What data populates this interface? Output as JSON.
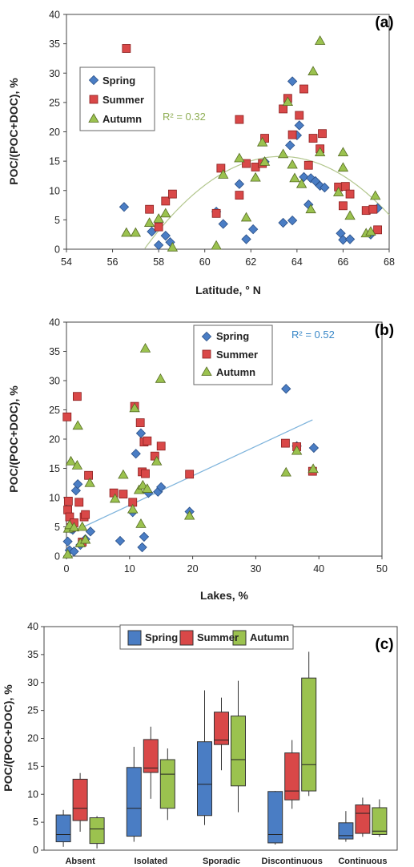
{
  "colors": {
    "spring": "#4a7dc4",
    "summer": "#d94848",
    "autumn": "#9bc24f",
    "fit_a": "#b3c78e",
    "fit_b": "#7fb4dc",
    "r2_a": "#8fae55",
    "r2_b": "#3a88c8"
  },
  "chart_data": [
    {
      "type": "scatter",
      "panel_label": "(a)",
      "xlabel": "Latitude, ° N",
      "ylabel": "POC/(POC+DOC), %",
      "xlim": [
        54,
        68
      ],
      "ylim": [
        0,
        40
      ],
      "xticks": [
        54,
        56,
        58,
        60,
        62,
        64,
        66,
        68
      ],
      "yticks": [
        0,
        5,
        10,
        15,
        20,
        25,
        30,
        35,
        40
      ],
      "legend_position": "left",
      "r2_label": "R² = 0.32",
      "fit": {
        "type": "quadratic",
        "vertex_x": 63.3,
        "vertex_y": 15.8,
        "a": -0.45
      },
      "series": [
        {
          "name": "Spring",
          "marker": "diamond",
          "points": [
            [
              56.5,
              7.2
            ],
            [
              57.7,
              3.0
            ],
            [
              58.0,
              0.7
            ],
            [
              58.3,
              2.3
            ],
            [
              58.5,
              1.2
            ],
            [
              60.5,
              6.4
            ],
            [
              60.8,
              4.3
            ],
            [
              61.5,
              11.1
            ],
            [
              61.8,
              1.7
            ],
            [
              62.1,
              3.4
            ],
            [
              62.6,
              14.9
            ],
            [
              63.4,
              4.5
            ],
            [
              63.8,
              4.9
            ],
            [
              63.7,
              17.7
            ],
            [
              63.8,
              28.6
            ],
            [
              64.0,
              19.4
            ],
            [
              64.1,
              21.1
            ],
            [
              64.3,
              12.3
            ],
            [
              64.5,
              7.6
            ],
            [
              64.6,
              12.1
            ],
            [
              64.8,
              11.6
            ],
            [
              65.0,
              10.8
            ],
            [
              65.2,
              10.5
            ],
            [
              65.9,
              2.7
            ],
            [
              66.0,
              1.6
            ],
            [
              66.3,
              1.7
            ],
            [
              67.2,
              2.5
            ],
            [
              67.5,
              7.0
            ]
          ]
        },
        {
          "name": "Summer",
          "marker": "square",
          "points": [
            [
              56.6,
              34.2
            ],
            [
              57.6,
              6.8
            ],
            [
              58.0,
              3.8
            ],
            [
              58.3,
              8.2
            ],
            [
              58.6,
              9.4
            ],
            [
              60.5,
              6.1
            ],
            [
              60.7,
              13.8
            ],
            [
              61.5,
              9.2
            ],
            [
              61.5,
              22.1
            ],
            [
              61.8,
              14.6
            ],
            [
              62.2,
              14.0
            ],
            [
              62.5,
              14.6
            ],
            [
              62.6,
              18.9
            ],
            [
              63.4,
              23.9
            ],
            [
              63.6,
              25.7
            ],
            [
              63.8,
              19.5
            ],
            [
              64.1,
              22.8
            ],
            [
              64.3,
              27.3
            ],
            [
              64.5,
              14.3
            ],
            [
              64.7,
              18.9
            ],
            [
              65.0,
              17.1
            ],
            [
              65.1,
              19.7
            ],
            [
              65.8,
              10.6
            ],
            [
              66.0,
              7.4
            ],
            [
              66.1,
              10.7
            ],
            [
              66.3,
              9.4
            ],
            [
              67.0,
              6.6
            ],
            [
              67.3,
              6.8
            ],
            [
              67.5,
              3.3
            ]
          ]
        },
        {
          "name": "Autumn",
          "marker": "triangle",
          "points": [
            [
              56.6,
              2.8
            ],
            [
              57.0,
              2.8
            ],
            [
              57.6,
              4.5
            ],
            [
              58.0,
              5.2
            ],
            [
              58.3,
              6.1
            ],
            [
              58.6,
              0.3
            ],
            [
              60.5,
              0.6
            ],
            [
              60.8,
              12.7
            ],
            [
              61.5,
              15.5
            ],
            [
              61.8,
              5.4
            ],
            [
              62.2,
              12.2
            ],
            [
              62.5,
              18.2
            ],
            [
              62.6,
              14.9
            ],
            [
              63.4,
              16.2
            ],
            [
              63.6,
              25.1
            ],
            [
              63.8,
              14.4
            ],
            [
              63.9,
              12.1
            ],
            [
              64.2,
              11.1
            ],
            [
              64.6,
              6.8
            ],
            [
              64.7,
              30.3
            ],
            [
              65.0,
              16.5
            ],
            [
              65.0,
              35.5
            ],
            [
              65.8,
              9.7
            ],
            [
              66.0,
              13.9
            ],
            [
              66.0,
              16.5
            ],
            [
              66.3,
              5.7
            ],
            [
              67.0,
              2.7
            ],
            [
              67.2,
              3.0
            ],
            [
              67.4,
              9.1
            ]
          ]
        }
      ]
    },
    {
      "type": "scatter",
      "panel_label": "(b)",
      "xlabel": "Lakes, %",
      "ylabel": "POC/(POC+DOC), %",
      "xlim": [
        0,
        50
      ],
      "ylim": [
        0,
        40
      ],
      "xticks": [
        0,
        10,
        20,
        30,
        40,
        50
      ],
      "yticks": [
        0,
        5,
        10,
        15,
        20,
        25,
        30,
        35,
        40
      ],
      "legend_position": "top-center",
      "r2_label": "R² = 0.52",
      "fit": {
        "type": "linear",
        "x0": 0.5,
        "y0": 3.9,
        "x1": 39,
        "y1": 23.3
      },
      "series": [
        {
          "name": "Spring",
          "marker": "diamond",
          "points": [
            [
              0.2,
              2.5
            ],
            [
              0.5,
              1.0
            ],
            [
              1.0,
              4.5
            ],
            [
              1.2,
              0.8
            ],
            [
              1.5,
              11.2
            ],
            [
              1.8,
              12.3
            ],
            [
              2.2,
              1.9
            ],
            [
              3.0,
              2.9
            ],
            [
              3.8,
              4.2
            ],
            [
              8.5,
              2.6
            ],
            [
              10.5,
              7.5
            ],
            [
              11.0,
              17.5
            ],
            [
              11.8,
              21.0
            ],
            [
              12.0,
              1.5
            ],
            [
              12.3,
              3.3
            ],
            [
              13.0,
              10.8
            ],
            [
              14.5,
              11.0
            ],
            [
              15.0,
              11.8
            ],
            [
              19.5,
              7.6
            ],
            [
              34.8,
              28.6
            ],
            [
              36.5,
              18.8
            ],
            [
              39.2,
              18.5
            ]
          ]
        },
        {
          "name": "Summer",
          "marker": "square",
          "points": [
            [
              0.1,
              23.8
            ],
            [
              0.2,
              7.9
            ],
            [
              0.3,
              9.4
            ],
            [
              0.5,
              6.7
            ],
            [
              0.7,
              4.9
            ],
            [
              1.2,
              5.7
            ],
            [
              1.7,
              27.3
            ],
            [
              2.0,
              9.2
            ],
            [
              2.5,
              2.4
            ],
            [
              2.8,
              6.7
            ],
            [
              3.0,
              7.1
            ],
            [
              3.5,
              13.8
            ],
            [
              7.5,
              10.8
            ],
            [
              9.0,
              10.6
            ],
            [
              10.5,
              9.2
            ],
            [
              10.8,
              25.6
            ],
            [
              11.7,
              22.8
            ],
            [
              12.0,
              14.4
            ],
            [
              12.3,
              19.5
            ],
            [
              12.8,
              19.7
            ],
            [
              12.5,
              14.1
            ],
            [
              14.0,
              17.1
            ],
            [
              15.0,
              18.8
            ],
            [
              19.5,
              14.0
            ],
            [
              34.7,
              19.3
            ],
            [
              36.5,
              18.7
            ],
            [
              39.0,
              14.5
            ]
          ]
        },
        {
          "name": "Autumn",
          "marker": "triangle",
          "points": [
            [
              0.2,
              0.3
            ],
            [
              0.3,
              4.7
            ],
            [
              0.5,
              5.3
            ],
            [
              0.7,
              16.2
            ],
            [
              1.2,
              4.9
            ],
            [
              1.7,
              15.5
            ],
            [
              1.8,
              22.3
            ],
            [
              2.2,
              2.2
            ],
            [
              2.5,
              5.0
            ],
            [
              3.0,
              2.8
            ],
            [
              3.7,
              12.5
            ],
            [
              7.7,
              9.8
            ],
            [
              9.0,
              13.9
            ],
            [
              10.5,
              8.0
            ],
            [
              10.8,
              25.3
            ],
            [
              11.5,
              11.3
            ],
            [
              11.8,
              5.5
            ],
            [
              12.1,
              12.1
            ],
            [
              12.5,
              35.5
            ],
            [
              12.8,
              11.5
            ],
            [
              14.3,
              16.2
            ],
            [
              14.9,
              30.3
            ],
            [
              19.5,
              6.9
            ],
            [
              34.8,
              14.3
            ],
            [
              36.5,
              18.0
            ],
            [
              39.1,
              14.9
            ]
          ]
        }
      ]
    },
    {
      "type": "box",
      "panel_label": "(c)",
      "ylabel": "POC/(POC+DOC), %",
      "ylim": [
        0,
        40
      ],
      "yticks": [
        0,
        5,
        10,
        15,
        20,
        25,
        30,
        35,
        40
      ],
      "legend_position": "top-center",
      "series_names": [
        "Spring",
        "Summer",
        "Autumn"
      ],
      "categories": [
        "Absent",
        "Isolated",
        "Sporadic",
        "Discontinuous",
        "Continuous"
      ],
      "boxes": [
        [
          {
            "min": 0.6,
            "q1": 1.5,
            "median": 2.8,
            "q3": 6.3,
            "max": 7.2
          },
          {
            "min": 3.3,
            "q1": 5.3,
            "median": 7.5,
            "q3": 12.7,
            "max": 13.8
          },
          {
            "min": 0.3,
            "q1": 1.2,
            "median": 3.8,
            "q3": 5.8,
            "max": 6.1
          }
        ],
        [
          {
            "min": 1.5,
            "q1": 2.5,
            "median": 7.5,
            "q3": 14.8,
            "max": 18.5
          },
          {
            "min": 9.2,
            "q1": 13.9,
            "median": 14.7,
            "q3": 19.8,
            "max": 22.1
          },
          {
            "min": 5.4,
            "q1": 7.5,
            "median": 13.6,
            "q3": 16.2,
            "max": 18.2
          }
        ],
        [
          {
            "min": 4.5,
            "q1": 6.2,
            "median": 11.8,
            "q3": 19.4,
            "max": 28.6
          },
          {
            "min": 14.3,
            "q1": 18.9,
            "median": 19.7,
            "q3": 24.7,
            "max": 27.3
          },
          {
            "min": 6.8,
            "q1": 11.5,
            "median": 16.2,
            "q3": 24.0,
            "max": 30.3
          }
        ],
        [
          {
            "min": 1.0,
            "q1": 1.3,
            "median": 2.8,
            "q3": 10.5,
            "max": 10.6
          },
          {
            "min": 7.4,
            "q1": 9.0,
            "median": 10.6,
            "q3": 17.4,
            "max": 19.7
          },
          {
            "min": 9.7,
            "q1": 10.6,
            "median": 15.3,
            "q3": 30.8,
            "max": 35.5
          }
        ],
        [
          {
            "min": 1.5,
            "q1": 2.0,
            "median": 2.6,
            "q3": 4.9,
            "max": 7.0
          },
          {
            "min": 2.4,
            "q1": 3.0,
            "median": 6.6,
            "q3": 8.1,
            "max": 9.4
          },
          {
            "min": 2.4,
            "q1": 2.8,
            "median": 3.4,
            "q3": 7.6,
            "max": 9.1
          }
        ]
      ]
    }
  ]
}
